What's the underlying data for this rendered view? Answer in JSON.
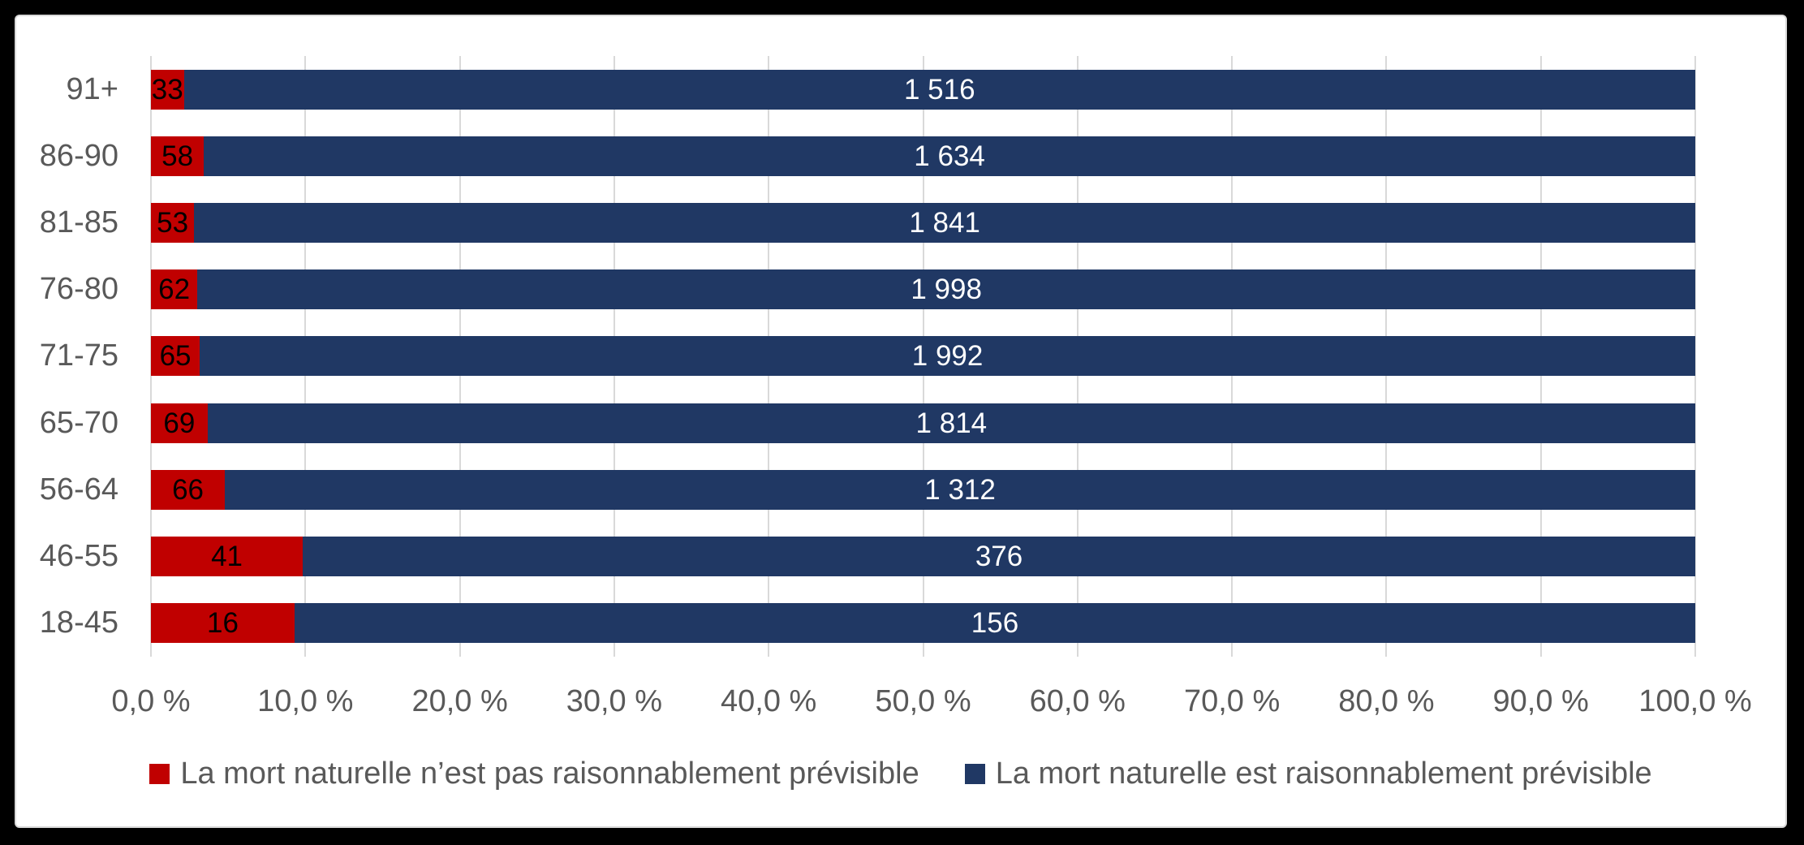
{
  "window": {
    "background_color": "#000000"
  },
  "panel": {
    "background_color": "#FFFFFF",
    "border_color": "#D9D9D9"
  },
  "chart_data": {
    "type": "bar",
    "variant": "100-percent-stacked",
    "orientation": "horizontal",
    "title": "",
    "categories": [
      "91+",
      "86-90",
      "81-85",
      "76-80",
      "71-75",
      "65-70",
      "56-64",
      "46-55",
      "18-45"
    ],
    "series": [
      {
        "name": "La mort naturelle n’est pas raisonnablement prévisible",
        "color": "#C00000",
        "label_text_color": "#000000",
        "values": [
          33,
          58,
          53,
          62,
          65,
          69,
          66,
          41,
          16
        ],
        "value_labels": [
          "33",
          "58",
          "53",
          "62",
          "65",
          "69",
          "66",
          "41",
          "16"
        ]
      },
      {
        "name": "La mort naturelle est raisonnablement prévisible",
        "color": "#203864",
        "label_text_color": "#FFFFFF",
        "values": [
          1516,
          1634,
          1841,
          1998,
          1992,
          1814,
          1312,
          376,
          156
        ],
        "value_labels": [
          "1 516",
          "1 634",
          "1 841",
          "1 998",
          "1 992",
          "1 814",
          "1 312",
          "376",
          "156"
        ]
      }
    ],
    "x_axis": {
      "min": 0,
      "max": 100,
      "step": 10,
      "unit": "%",
      "tick_labels": [
        "0,0 %",
        "10,0 %",
        "20,0 %",
        "30,0 %",
        "40,0 %",
        "50,0 %",
        "60,0 %",
        "70,0 %",
        "80,0 %",
        "90,0 %",
        "100,0 %"
      ],
      "label_color": "#595959"
    },
    "y_axis": {
      "label_color": "#595959"
    },
    "grid": {
      "vertical": true,
      "horizontal": false,
      "color": "#D9D9D9"
    },
    "legend": {
      "position": "bottom",
      "text_color": "#595959",
      "items": [
        {
          "label": "La mort naturelle n’est pas raisonnablement prévisible",
          "color": "#C00000"
        },
        {
          "label": "La mort naturelle est raisonnablement prévisible",
          "color": "#203864"
        }
      ]
    }
  }
}
